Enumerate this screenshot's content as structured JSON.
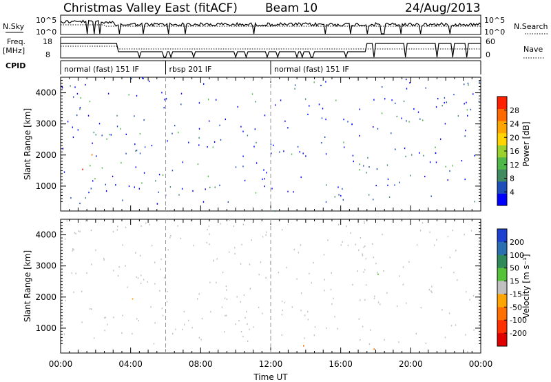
{
  "header": {
    "title": "Christmas Valley East (fitACF)",
    "beam": "Beam 10",
    "date": "24/Aug/2013"
  },
  "top_panels": {
    "nsky_label": "N.Sky",
    "nsky_ticks": [
      "10^5",
      "10^0"
    ],
    "nsearch_label": "N.Search",
    "nsearch_ticks": [
      "10^5",
      "10^0"
    ],
    "freq_label": "Freq.",
    "freq_unit": "[MHz]",
    "freq_ticks": [
      "18",
      "8"
    ],
    "nave_label": "Nave",
    "nave_ticks": [
      "60",
      "0"
    ],
    "cpid_label": "CPID",
    "cpid_segments": [
      {
        "label": "normal (fast) 151 IF",
        "start": 0.0,
        "end": 6.0
      },
      {
        "label": "rbsp 201 IF",
        "start": 6.0,
        "end": 12.0
      },
      {
        "label": "normal (fast) 151 IF",
        "start": 12.0,
        "end": 24.0
      }
    ]
  },
  "colorbars": {
    "power": {
      "label": "Power [dB]",
      "ticks": [
        "28",
        "24",
        "20",
        "16",
        "12",
        "8",
        "4"
      ],
      "colors": [
        "#0000ff",
        "#1e4fb8",
        "#3f8a5f",
        "#4fb848",
        "#9ad12d",
        "#ffd400",
        "#ffa500",
        "#ff6a00",
        "#ff2000"
      ]
    },
    "velocity": {
      "label": "Velocity [m s⁻¹]",
      "ticks": [
        "200",
        "100",
        "50",
        "15",
        "-15",
        "-50",
        "-100",
        "-200"
      ],
      "colors": [
        "#1e40d0",
        "#2a6fb0",
        "#2f8a5a",
        "#55c23a",
        "#c0c0c0",
        "#ffa500",
        "#ff7000",
        "#ff3000",
        "#e00000"
      ]
    }
  },
  "chart_data": [
    {
      "type": "heatmap",
      "panel": "Power",
      "ylabel": "Slant Range [km]",
      "xlabel": "Time UT",
      "xlim": [
        0,
        24
      ],
      "ylim": [
        200,
        4500
      ],
      "yticks": [
        1000,
        2000,
        3000,
        4000
      ],
      "xticks": [
        "00:00",
        "04:00",
        "08:00",
        "12:00",
        "16:00",
        "20:00",
        "00:00"
      ],
      "scatter_regions": [
        {
          "t0": 0.2,
          "t1": 5.8,
          "r0": 1500,
          "r1": 2300,
          "level": "high"
        },
        {
          "t0": 5.8,
          "t1": 7.8,
          "r0": 950,
          "r1": 1250,
          "level": "high"
        },
        {
          "t0": 6.5,
          "t1": 8.2,
          "r0": 1600,
          "r1": 2100,
          "level": "mid"
        },
        {
          "t0": 0.0,
          "t1": 24.0,
          "r0": 200,
          "r1": 500,
          "level": "low"
        },
        {
          "t0": 12.0,
          "t1": 24.0,
          "r0": 1300,
          "r1": 2300,
          "level": "low"
        },
        {
          "t0": 16.0,
          "t1": 23.5,
          "r0": 2500,
          "r1": 3400,
          "level": "low"
        }
      ]
    },
    {
      "type": "heatmap",
      "panel": "Velocity",
      "ylabel": "Slant Range [km]",
      "xlabel": "Time UT",
      "xlim": [
        0,
        24
      ],
      "ylim": [
        200,
        4500
      ],
      "yticks": [
        1000,
        2000,
        3000,
        4000
      ],
      "xticks": [
        "00:00",
        "04:00",
        "08:00",
        "12:00",
        "16:00",
        "20:00",
        "00:00"
      ],
      "scatter_regions": [
        {
          "t0": 0.2,
          "t1": 5.8,
          "r0": 1500,
          "r1": 2400,
          "level": "near-zero"
        },
        {
          "t0": 5.8,
          "t1": 7.8,
          "r0": 950,
          "r1": 1250,
          "level": "positive-small"
        },
        {
          "t0": 0.0,
          "t1": 24.0,
          "r0": 200,
          "r1": 500,
          "level": "negative"
        },
        {
          "t0": 16.0,
          "t1": 23.5,
          "r0": 2500,
          "r1": 3400,
          "level": "near-zero"
        }
      ]
    }
  ]
}
